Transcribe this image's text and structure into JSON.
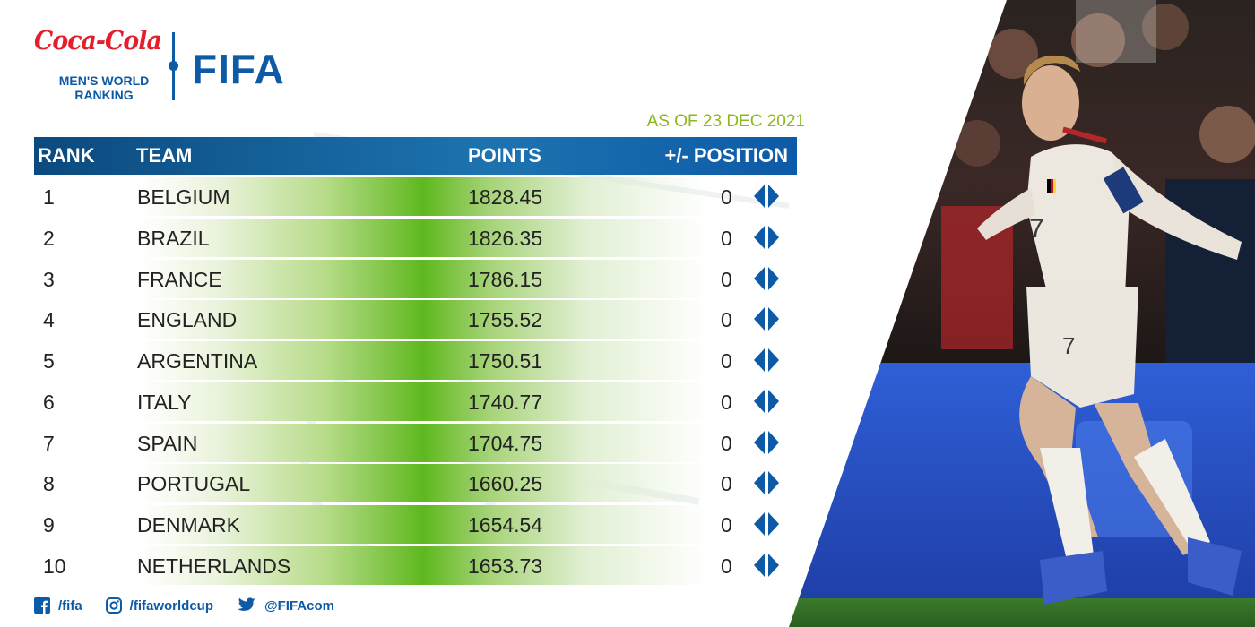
{
  "brand": {
    "sponsor_script": "Coca-Cola",
    "ranking_label_line1": "MEN'S WORLD",
    "ranking_label_line2": "RANKING",
    "federation": "FIFA"
  },
  "as_of": "AS OF 23 DEC 2021",
  "table": {
    "headers": {
      "rank": "RANK",
      "team": "TEAM",
      "points": "POINTS",
      "position": "+/- POSITION"
    },
    "rows": [
      {
        "rank": "1",
        "team": "BELGIUM",
        "points": "1828.45",
        "change": "0"
      },
      {
        "rank": "2",
        "team": "BRAZIL",
        "points": "1826.35",
        "change": "0"
      },
      {
        "rank": "3",
        "team": "FRANCE",
        "points": "1786.15",
        "change": "0"
      },
      {
        "rank": "4",
        "team": "ENGLAND",
        "points": "1755.52",
        "change": "0"
      },
      {
        "rank": "5",
        "team": "ARGENTINA",
        "points": "1750.51",
        "change": "0"
      },
      {
        "rank": "6",
        "team": "ITALY",
        "points": "1740.77",
        "change": "0"
      },
      {
        "rank": "7",
        "team": "SPAIN",
        "points": "1704.75",
        "change": "0"
      },
      {
        "rank": "8",
        "team": "PORTUGAL",
        "points": "1660.25",
        "change": "0"
      },
      {
        "rank": "9",
        "team": "DENMARK",
        "points": "1654.54",
        "change": "0"
      },
      {
        "rank": "10",
        "team": "NETHERLANDS",
        "points": "1653.73",
        "change": "0"
      }
    ]
  },
  "social": [
    {
      "icon": "facebook-icon",
      "handle": "/fifa"
    },
    {
      "icon": "instagram-icon",
      "handle": "/fifaworldcup"
    },
    {
      "icon": "twitter-icon",
      "handle": "@FIFAcom"
    }
  ],
  "colors": {
    "fifa_blue": "#0d5aa7",
    "coca_cola_red": "#e41e2b",
    "date_green": "#8ab820",
    "row_highlight_green": "#5fb81f"
  }
}
